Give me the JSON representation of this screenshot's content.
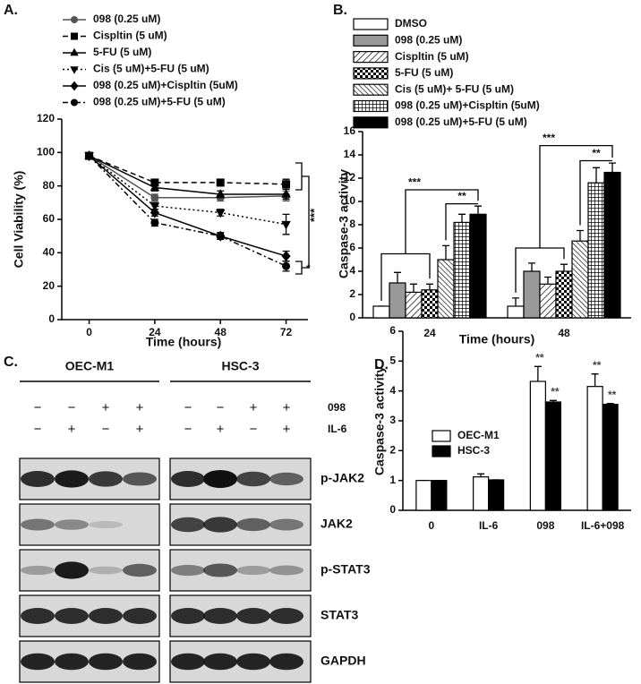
{
  "chart_data": [
    {
      "panel": "A.",
      "type": "line",
      "ylabel": "Cell Viability (%)",
      "xlabel": "Time (hours)",
      "x": [
        0,
        24,
        48,
        72
      ],
      "xlim": [
        -10,
        80
      ],
      "xticks": [
        0,
        24,
        48,
        72
      ],
      "ylim": [
        0,
        120
      ],
      "yticks": [
        0,
        20,
        40,
        60,
        80,
        100,
        120
      ],
      "series": [
        {
          "name": "098 (0.25 uM)",
          "color": "#555555",
          "marker": "circle",
          "dash": "solid",
          "values": [
            98,
            73,
            73,
            74
          ],
          "errors": [
            1,
            2,
            2,
            3
          ]
        },
        {
          "name": "Cispltin (5 uM)",
          "color": "#000000",
          "marker": "square",
          "dash": "dashed",
          "values": [
            98,
            82,
            82,
            81
          ],
          "errors": [
            1,
            2,
            2,
            3
          ]
        },
        {
          "name": "5-FU (5 uM)",
          "color": "#000000",
          "marker": "triangle",
          "dash": "solid",
          "values": [
            98,
            79,
            75,
            75
          ],
          "errors": [
            1,
            2,
            2,
            3
          ]
        },
        {
          "name": "Cis (5 uM)+5-FU (5 uM)",
          "color": "#000000",
          "marker": "triangle-down",
          "dash": "dotted",
          "values": [
            98,
            68,
            64,
            57
          ],
          "errors": [
            1,
            2,
            2,
            6
          ]
        },
        {
          "name": "098 (0.25 uM)+Cispltin (5uM)",
          "color": "#000000",
          "marker": "diamond",
          "dash": "solid",
          "values": [
            98,
            64,
            50,
            38
          ],
          "errors": [
            1,
            2,
            2,
            3
          ]
        },
        {
          "name": "098 (0.25 uM)+5-FU (5 uM)",
          "color": "#000000",
          "marker": "circle",
          "dash": "dashdot",
          "values": [
            98,
            58,
            50,
            32
          ],
          "errors": [
            1,
            2,
            2,
            3
          ]
        }
      ],
      "annotations": [
        "*",
        "***"
      ]
    },
    {
      "panel": "B.",
      "type": "bar",
      "ylabel": "Caspase-3 activity",
      "xlabel": "Time (hours)",
      "categories": [
        "24",
        "48"
      ],
      "ylim": [
        0,
        16
      ],
      "yticks": [
        0,
        2,
        4,
        6,
        8,
        10,
        12,
        14,
        16
      ],
      "series": [
        {
          "name": "DMSO",
          "color": "#ffffff",
          "values": [
            1,
            1
          ],
          "errors": [
            0,
            0.7
          ]
        },
        {
          "name": "098 (0.25 uM)",
          "color": "#999999",
          "values": [
            3,
            4
          ],
          "errors": [
            0.9,
            0.7
          ]
        },
        {
          "name": "Cispltin (5 uM)",
          "color": "#ffffff",
          "pattern": "hatch",
          "values": [
            2.2,
            2.9
          ],
          "errors": [
            0.7,
            0.6
          ]
        },
        {
          "name": "5-FU (5 uM)",
          "color": "#ffffff",
          "pattern": "checker",
          "values": [
            2.4,
            4
          ],
          "errors": [
            0.5,
            0.6
          ]
        },
        {
          "name": "Cis (5 uM)+ 5-FU (5 uM)",
          "color": "#ffffff",
          "pattern": "hatch-back",
          "values": [
            5,
            6.6
          ],
          "errors": [
            1.2,
            0.9
          ]
        },
        {
          "name": "098 (0.25 uM)+Cispltin (5uM)",
          "color": "#ffffff",
          "pattern": "grid",
          "values": [
            8.2,
            11.6
          ],
          "errors": [
            0.7,
            1.3
          ]
        },
        {
          "name": "098 (0.25 uM)+5-FU (5 uM)",
          "color": "#000000",
          "values": [
            8.9,
            12.5
          ],
          "errors": [
            0.7,
            0.8
          ]
        }
      ],
      "annotations": [
        "***",
        "**",
        "***",
        "**"
      ]
    },
    {
      "panel": "D.",
      "type": "bar",
      "ylabel": "Caspase-3 activity",
      "categories": [
        "0",
        "IL-6",
        "098",
        "IL-6+098"
      ],
      "ylim": [
        0,
        6
      ],
      "yticks": [
        0,
        1,
        2,
        3,
        4,
        5,
        6
      ],
      "series": [
        {
          "name": "OEC-M1",
          "color": "#ffffff",
          "values": [
            1,
            1.12,
            4.32,
            4.15
          ],
          "errors": [
            0,
            0.1,
            0.5,
            0.42
          ]
        },
        {
          "name": "HSC-3",
          "color": "#000000",
          "values": [
            1,
            1.02,
            3.63,
            3.55
          ],
          "errors": [
            0,
            0,
            0.05,
            0.03
          ]
        }
      ],
      "annotations": [
        "**",
        "**",
        "**",
        "**"
      ]
    }
  ],
  "blot": {
    "panel": "C.",
    "groups": [
      "OEC-M1",
      "HSC-3"
    ],
    "treatments": [
      {
        "name": "098",
        "signs": [
          "−",
          "−",
          "+",
          "+",
          "−",
          "−",
          "+",
          "+"
        ]
      },
      {
        "name": "IL-6",
        "signs": [
          "−",
          "+",
          "−",
          "+",
          "−",
          "+",
          "−",
          "+"
        ]
      }
    ],
    "bands": [
      "p-JAK2",
      "JAK2",
      "p-STAT3",
      "STAT3",
      "GAPDH"
    ]
  }
}
